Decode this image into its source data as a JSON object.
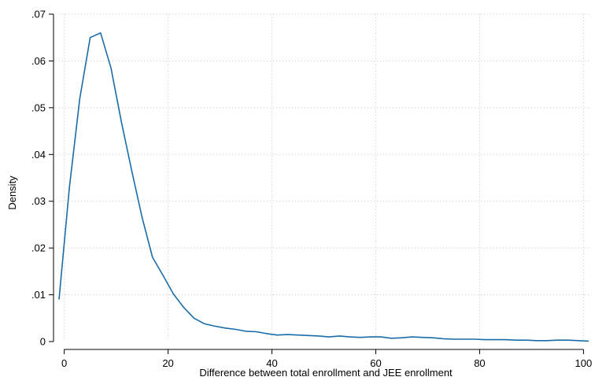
{
  "chart_data": {
    "type": "line",
    "title": "",
    "xlabel": "Difference between total enrollment and JEE enrollment",
    "ylabel": "Density",
    "xlim": [
      -1,
      101
    ],
    "ylim": [
      0,
      0.07
    ],
    "x_ticks": [
      0,
      20,
      40,
      60,
      80,
      100
    ],
    "x_tick_labels": [
      "0",
      "20",
      "40",
      "60",
      "80",
      "100"
    ],
    "y_ticks": [
      0,
      0.01,
      0.02,
      0.03,
      0.04,
      0.05,
      0.06,
      0.07
    ],
    "y_tick_labels": [
      "0",
      ".01",
      ".02",
      ".03",
      ".04",
      ".05",
      ".06",
      ".07"
    ],
    "grid": true,
    "legend": "none",
    "line_color": "#1a6ca8",
    "series": [
      {
        "x": [
          -1,
          1,
          3,
          5,
          7,
          9,
          11,
          13,
          15,
          17,
          19,
          21,
          23,
          25,
          27,
          29,
          31,
          33,
          35,
          37,
          39,
          41,
          43,
          45,
          47,
          49,
          51,
          53,
          55,
          57,
          59,
          61,
          63,
          65,
          67,
          69,
          71,
          73,
          75,
          77,
          79,
          81,
          83,
          85,
          87,
          89,
          91,
          93,
          95,
          97,
          99,
          101
        ],
        "y": [
          0.009,
          0.033,
          0.052,
          0.065,
          0.066,
          0.0585,
          0.047,
          0.0365,
          0.0265,
          0.018,
          0.0142,
          0.0102,
          0.0073,
          0.005,
          0.0038,
          0.0033,
          0.0029,
          0.0026,
          0.0022,
          0.0021,
          0.0017,
          0.0014,
          0.0015,
          0.0014,
          0.0013,
          0.0012,
          0.001,
          0.0012,
          0.001,
          0.0009,
          0.001,
          0.001,
          0.0007,
          0.0008,
          0.001,
          0.0009,
          0.0008,
          0.0006,
          0.0005,
          0.0005,
          0.0005,
          0.0004,
          0.0004,
          0.0004,
          0.0003,
          0.0003,
          0.0002,
          0.0002,
          0.0003,
          0.0003,
          0.0002,
          0.0001
        ]
      }
    ]
  }
}
